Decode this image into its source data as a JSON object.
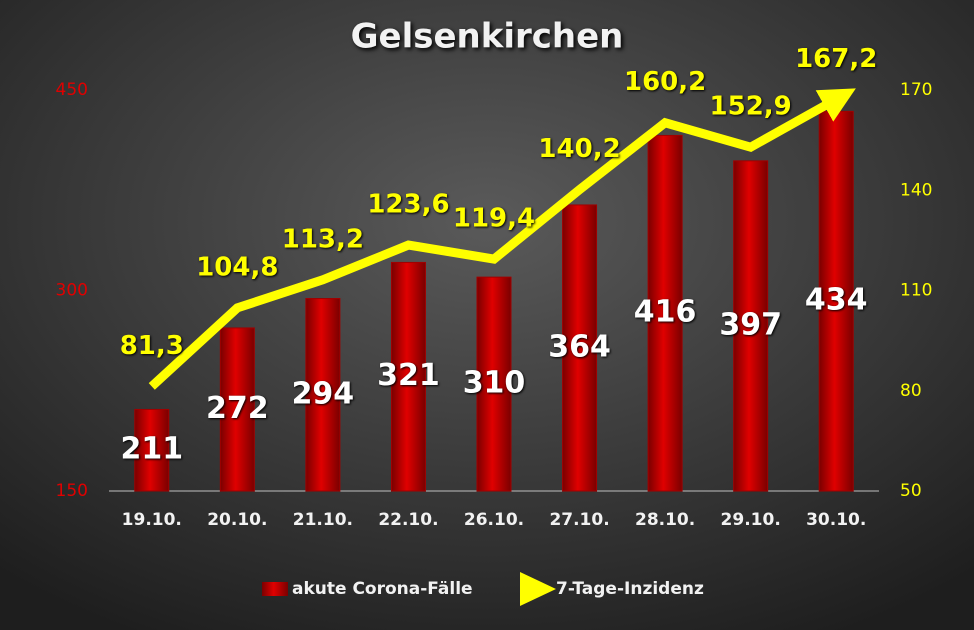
{
  "chart_data": {
    "type": "bar-line",
    "title": "Gelsenkirchen",
    "categories": [
      "19.10.",
      "20.10.",
      "21.10.",
      "22.10.",
      "26.10.",
      "27.10.",
      "28.10.",
      "29.10.",
      "30.10."
    ],
    "series": [
      {
        "name": "akute Corona-Fälle",
        "type": "bar",
        "color": "#d40000",
        "values": [
          211,
          272,
          294,
          321,
          310,
          364,
          416,
          397,
          434
        ]
      },
      {
        "name": "7-Tage-Inzidenz",
        "type": "line",
        "axis": "y2",
        "color": "#ffff00",
        "values": [
          81.3,
          104.8,
          113.2,
          123.6,
          119.4,
          140.2,
          160.2,
          152.9,
          167.2
        ],
        "value_labels": [
          "81,3",
          "104,8",
          "113,2",
          "123,6",
          "119,4",
          "140,2",
          "160,2",
          "152,9",
          "167,2"
        ]
      }
    ],
    "ylim": [
      150,
      450
    ],
    "yticks": [
      150,
      300,
      450
    ],
    "ytick_color": "#e00000",
    "y2lim": [
      50,
      170
    ],
    "y2ticks": [
      50,
      80,
      110,
      140,
      170
    ],
    "y2tick_color": "#ffff00",
    "legend": "bottom"
  }
}
